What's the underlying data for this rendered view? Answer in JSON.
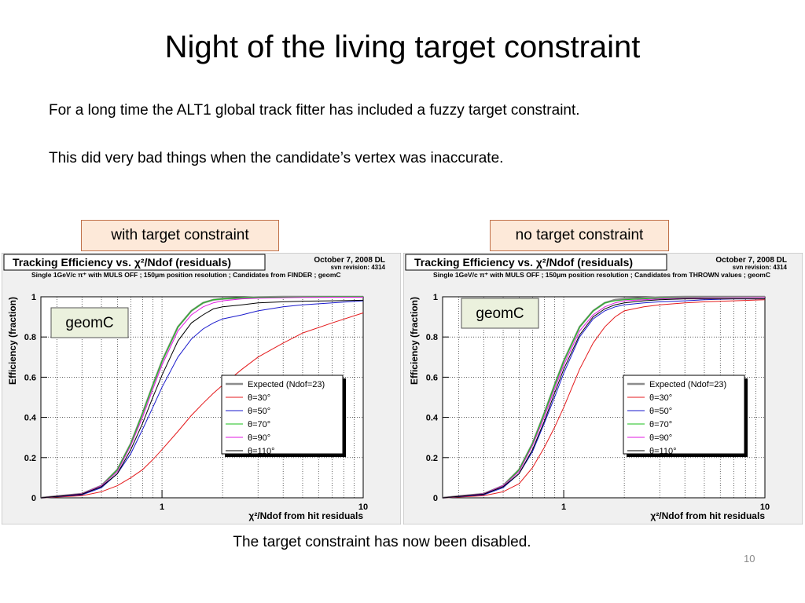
{
  "slide": {
    "title": "Night of the living target constraint",
    "bullet1": "For a long time the ALT1 global track fitter has included a fuzzy target constraint.",
    "bullet2": "This did very bad things when the candidate’s vertex was inaccurate.",
    "label_left": "with target constraint",
    "label_right": "no target constraint",
    "footer": "The target constraint has now been disabled.",
    "page_number": "10"
  },
  "colors": {
    "expected": "#8c8c8c",
    "theta30": "#e41a1c",
    "theta50": "#1a1acc",
    "theta70": "#1abf1a",
    "theta90": "#e01ae0",
    "theta110": "#000000",
    "label_box_fill": "#fde9d9",
    "label_box_border": "#c0714a",
    "plot_panel_bg": "#f0f0f0"
  },
  "chart_data": [
    {
      "type": "line",
      "title": "Tracking Efficiency vs. χ²/Ndof (residuals)",
      "date_text": "October 7, 2008 DL",
      "svn_text": "svn revision: 4314",
      "subtitle": "Single 1GeV/c π⁺ with MULS OFF ; 150μm position resolution ;  Candidates from FINDER ; geomC",
      "inset_label": "geomC",
      "xlabel": "χ²/Ndof from hit residuals",
      "ylabel": "Efficiency (fraction)",
      "x_scale": "log",
      "xlim": [
        0.25,
        10
      ],
      "ylim": [
        0,
        1
      ],
      "x_ticks": [
        "1",
        "10"
      ],
      "y_ticks": [
        "0",
        "0.2",
        "0.4",
        "0.6",
        "0.8",
        "1"
      ],
      "grid": true,
      "legend_position": "right",
      "x": [
        0.25,
        0.4,
        0.5,
        0.6,
        0.7,
        0.8,
        0.9,
        1.0,
        1.2,
        1.4,
        1.6,
        1.8,
        2.0,
        2.5,
        3,
        4,
        5,
        7,
        10
      ],
      "series": [
        {
          "name": "Expected (Ndof=23)",
          "color_key": "expected",
          "values": [
            0.0,
            0.02,
            0.06,
            0.14,
            0.27,
            0.42,
            0.56,
            0.68,
            0.85,
            0.93,
            0.97,
            0.985,
            0.99,
            0.995,
            0.998,
            1.0,
            1.0,
            1.0,
            1.0
          ]
        },
        {
          "name": "θ=30°",
          "color_key": "theta30",
          "values": [
            0.0,
            0.01,
            0.03,
            0.06,
            0.1,
            0.14,
            0.19,
            0.24,
            0.33,
            0.41,
            0.47,
            0.52,
            0.56,
            0.64,
            0.7,
            0.77,
            0.82,
            0.87,
            0.92
          ]
        },
        {
          "name": "θ=50°",
          "color_key": "theta50",
          "values": [
            0.0,
            0.015,
            0.05,
            0.12,
            0.22,
            0.34,
            0.45,
            0.55,
            0.7,
            0.79,
            0.84,
            0.87,
            0.89,
            0.91,
            0.93,
            0.95,
            0.96,
            0.97,
            0.98
          ]
        },
        {
          "name": "θ=70°",
          "color_key": "theta70",
          "values": [
            0.0,
            0.02,
            0.06,
            0.14,
            0.27,
            0.42,
            0.56,
            0.68,
            0.85,
            0.93,
            0.97,
            0.985,
            0.99,
            0.995,
            0.997,
            0.998,
            0.999,
            1.0,
            1.0
          ]
        },
        {
          "name": "θ=90°",
          "color_key": "theta90",
          "values": [
            0.0,
            0.02,
            0.06,
            0.13,
            0.26,
            0.4,
            0.54,
            0.66,
            0.83,
            0.91,
            0.95,
            0.97,
            0.98,
            0.99,
            0.993,
            0.995,
            0.997,
            0.998,
            0.998
          ]
        },
        {
          "name": "θ=110°",
          "color_key": "theta110",
          "values": [
            0.0,
            0.018,
            0.055,
            0.12,
            0.24,
            0.37,
            0.5,
            0.61,
            0.78,
            0.87,
            0.91,
            0.94,
            0.95,
            0.96,
            0.97,
            0.975,
            0.978,
            0.98,
            0.983
          ]
        }
      ]
    },
    {
      "type": "line",
      "title": "Tracking Efficiency vs. χ²/Ndof (residuals)",
      "date_text": "October 7, 2008 DL",
      "svn_text": "svn revision: 4314",
      "subtitle": "Single 1GeV/c π⁺ with MULS OFF ; 150μm position resolution ;  Candidates from THROWN values ; geomC",
      "inset_label": "geomC",
      "xlabel": "χ²/Ndof from hit residuals",
      "ylabel": "Efficiency (fraction)",
      "x_scale": "log",
      "xlim": [
        0.25,
        10
      ],
      "ylim": [
        0,
        1
      ],
      "x_ticks": [
        "1",
        "10"
      ],
      "y_ticks": [
        "0",
        "0.2",
        "0.4",
        "0.6",
        "0.8",
        "1"
      ],
      "grid": true,
      "legend_position": "right",
      "x": [
        0.25,
        0.4,
        0.5,
        0.6,
        0.7,
        0.8,
        0.9,
        1.0,
        1.2,
        1.4,
        1.6,
        1.8,
        2.0,
        2.5,
        3,
        4,
        5,
        7,
        10
      ],
      "series": [
        {
          "name": "Expected (Ndof=23)",
          "color_key": "expected",
          "values": [
            0.0,
            0.02,
            0.06,
            0.14,
            0.27,
            0.42,
            0.56,
            0.68,
            0.85,
            0.93,
            0.97,
            0.985,
            0.99,
            0.995,
            0.998,
            1.0,
            1.0,
            1.0,
            1.0
          ]
        },
        {
          "name": "θ=30°",
          "color_key": "theta30",
          "values": [
            0.0,
            0.01,
            0.03,
            0.07,
            0.15,
            0.25,
            0.35,
            0.45,
            0.64,
            0.77,
            0.85,
            0.9,
            0.93,
            0.95,
            0.96,
            0.97,
            0.975,
            0.98,
            0.985
          ]
        },
        {
          "name": "θ=50°",
          "color_key": "theta50",
          "values": [
            0.0,
            0.015,
            0.05,
            0.12,
            0.23,
            0.37,
            0.5,
            0.62,
            0.8,
            0.89,
            0.93,
            0.95,
            0.96,
            0.97,
            0.975,
            0.98,
            0.985,
            0.99,
            0.99
          ]
        },
        {
          "name": "θ=70°",
          "color_key": "theta70",
          "values": [
            0.0,
            0.02,
            0.06,
            0.14,
            0.27,
            0.42,
            0.56,
            0.68,
            0.85,
            0.93,
            0.97,
            0.98,
            0.985,
            0.99,
            0.993,
            0.995,
            0.997,
            0.998,
            0.998
          ]
        },
        {
          "name": "θ=90°",
          "color_key": "theta90",
          "values": [
            0.0,
            0.02,
            0.06,
            0.13,
            0.26,
            0.4,
            0.54,
            0.66,
            0.83,
            0.91,
            0.95,
            0.97,
            0.98,
            0.985,
            0.99,
            0.993,
            0.995,
            0.996,
            0.997
          ]
        },
        {
          "name": "θ=110°",
          "color_key": "theta110",
          "values": [
            0.0,
            0.018,
            0.055,
            0.12,
            0.24,
            0.38,
            0.52,
            0.64,
            0.81,
            0.9,
            0.94,
            0.96,
            0.97,
            0.98,
            0.985,
            0.99,
            0.99,
            0.99,
            0.99
          ]
        }
      ]
    }
  ]
}
